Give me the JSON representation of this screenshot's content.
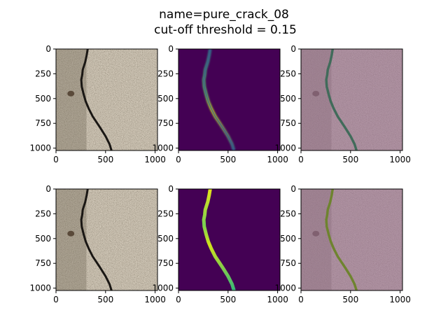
{
  "figure": {
    "title_line1": "name=pure_crack_08",
    "title_line2": "cut-off threshold = 0.15"
  },
  "colors": {
    "axes_frame": "#000000",
    "viridis_low": "#440154",
    "viridis_mid": "#21918c",
    "viridis_high": "#fde725",
    "concrete_base": "#b5ab9b",
    "crack": "#1a1714",
    "overlay_tint": "#9a6f95"
  },
  "chart_data": [
    {
      "type": "heatmap",
      "row": 0,
      "col": 0,
      "content": "input-image",
      "xticks": [
        0,
        500,
        1000
      ],
      "yticks": [
        0,
        250,
        500,
        750,
        1000
      ],
      "xlim": [
        0,
        1024
      ],
      "ylim": [
        1024,
        0
      ]
    },
    {
      "type": "heatmap",
      "row": 0,
      "col": 1,
      "content": "predicted-mask",
      "colormap": "viridis",
      "xticks": [
        0,
        500,
        1000
      ],
      "yticks": [
        0,
        250,
        500,
        750,
        1000
      ],
      "xlim": [
        0,
        1024
      ],
      "ylim": [
        1024,
        0
      ]
    },
    {
      "type": "heatmap",
      "row": 0,
      "col": 2,
      "content": "prediction-overlay",
      "xticks": [
        0,
        500,
        1000
      ],
      "yticks": [
        0,
        250,
        500,
        750,
        1000
      ],
      "xlim": [
        0,
        1024
      ],
      "ylim": [
        1024,
        0
      ]
    },
    {
      "type": "heatmap",
      "row": 1,
      "col": 0,
      "content": "input-image",
      "xticks": [
        0,
        500,
        1000
      ],
      "yticks": [
        0,
        250,
        500,
        750,
        1000
      ],
      "xlim": [
        0,
        1024
      ],
      "ylim": [
        1024,
        0
      ]
    },
    {
      "type": "heatmap",
      "row": 1,
      "col": 1,
      "content": "ground-truth-mask",
      "colormap": "viridis",
      "xticks": [
        0,
        500,
        1000
      ],
      "yticks": [
        0,
        250,
        500,
        750,
        1000
      ],
      "xlim": [
        0,
        1024
      ],
      "ylim": [
        1024,
        0
      ]
    },
    {
      "type": "heatmap",
      "row": 1,
      "col": 2,
      "content": "ground-truth-overlay",
      "xticks": [
        0,
        500,
        1000
      ],
      "yticks": [
        0,
        250,
        500,
        750,
        1000
      ],
      "xlim": [
        0,
        1024
      ],
      "ylim": [
        1024,
        0
      ]
    }
  ]
}
